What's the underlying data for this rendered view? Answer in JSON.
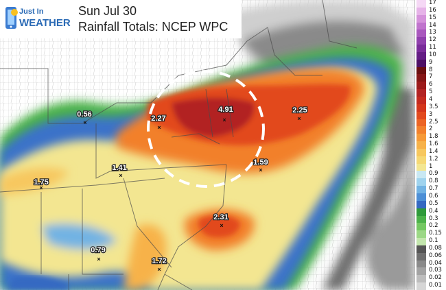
{
  "header": {
    "logo_line1": "Just In",
    "logo_line2": "WEATHER",
    "date": "Sun Jul 30",
    "product": "Rainfall Totals: NCEP WPC"
  },
  "map": {
    "highlight_shape": "dashed white circle",
    "point_values": [
      {
        "name": "point-central-pa",
        "value": "4.91"
      },
      {
        "name": "point-western-md",
        "value": "2.27"
      },
      {
        "name": "point-offshore-ne",
        "value": "2.25"
      },
      {
        "name": "point-ohio",
        "value": "0.56"
      },
      {
        "name": "point-nc-coast",
        "value": "1.59"
      },
      {
        "name": "point-virginia",
        "value": "1.41"
      },
      {
        "name": "point-kentucky",
        "value": "1.75"
      },
      {
        "name": "point-offshore-se",
        "value": "2.31"
      },
      {
        "name": "point-georgia",
        "value": "0.79"
      },
      {
        "name": "point-florida",
        "value": "1.72"
      }
    ]
  },
  "legend": {
    "items": [
      {
        "label": "17",
        "color": "#f5d8f5"
      },
      {
        "label": "16",
        "color": "#e6b3e8"
      },
      {
        "label": "15",
        "color": "#d592db"
      },
      {
        "label": "14",
        "color": "#c074cd"
      },
      {
        "label": "13",
        "color": "#a958be"
      },
      {
        "label": "12",
        "color": "#9040ad"
      },
      {
        "label": "11",
        "color": "#7a2c9a"
      },
      {
        "label": "10",
        "color": "#641d85"
      },
      {
        "label": "9",
        "color": "#4e1066"
      },
      {
        "label": "8",
        "color": "#6b0f0f"
      },
      {
        "label": "7",
        "color": "#851616"
      },
      {
        "label": "6",
        "color": "#9c1b1b"
      },
      {
        "label": "5",
        "color": "#b22323"
      },
      {
        "label": "4",
        "color": "#c42a1f"
      },
      {
        "label": "3.5",
        "color": "#d4361c"
      },
      {
        "label": "3",
        "color": "#e24a1e"
      },
      {
        "label": "2.5",
        "color": "#ec6424"
      },
      {
        "label": "2",
        "color": "#f2802c"
      },
      {
        "label": "1.8",
        "color": "#f69a38"
      },
      {
        "label": "1.6",
        "color": "#f7b24a"
      },
      {
        "label": "1.4",
        "color": "#f7c75e"
      },
      {
        "label": "1.2",
        "color": "#f6d874"
      },
      {
        "label": "1",
        "color": "#f3e691"
      },
      {
        "label": "0.9",
        "color": "#c9e8f3"
      },
      {
        "label": "0.8",
        "color": "#9fd3ee"
      },
      {
        "label": "0.7",
        "color": "#72b3e3"
      },
      {
        "label": "0.6",
        "color": "#4d8fd6"
      },
      {
        "label": "0.5",
        "color": "#3569c2"
      },
      {
        "label": "0.4",
        "color": "#2f9a3a"
      },
      {
        "label": "0.3",
        "color": "#4cb24a"
      },
      {
        "label": "0.2",
        "color": "#74c862"
      },
      {
        "label": "0.15",
        "color": "#9cd886"
      },
      {
        "label": "0.1",
        "color": "#c3e6ad"
      },
      {
        "label": "0.08",
        "color": "#555555"
      },
      {
        "label": "0.06",
        "color": "#6f6f6f"
      },
      {
        "label": "0.04",
        "color": "#8a8a8a"
      },
      {
        "label": "0.03",
        "color": "#a3a3a3"
      },
      {
        "label": "0.02",
        "color": "#bdbdbd"
      },
      {
        "label": "0.01",
        "color": "#d6d6d6"
      }
    ]
  }
}
